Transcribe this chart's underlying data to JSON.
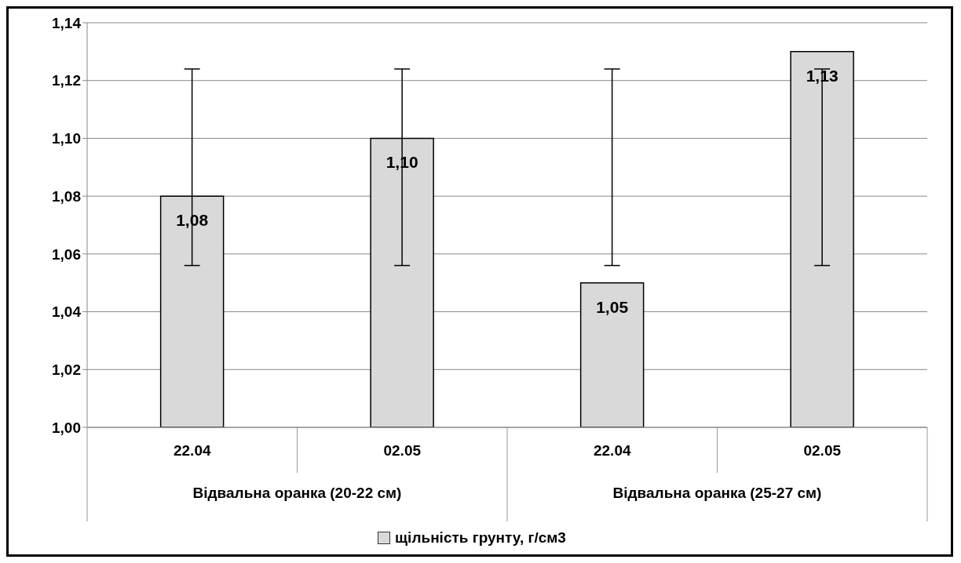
{
  "chart_data": {
    "type": "bar",
    "categories": [
      "22.04",
      "02.05",
      "22.04",
      "02.05"
    ],
    "series": [
      {
        "name": "щільність грунту, г/см3",
        "color": "#d9d9d9",
        "values": [
          1.08,
          1.1,
          1.05,
          1.13
        ],
        "errors": [
          [
            1.056,
            1.124
          ],
          [
            1.056,
            1.124
          ],
          [
            1.056,
            1.124
          ],
          [
            1.056,
            1.124
          ]
        ],
        "value_labels": [
          "1,08",
          "1,10",
          "1,05",
          "1,13"
        ]
      }
    ],
    "annotations": [
      "Відвальна оранка (20-22 см)",
      "Відвальна оранка (25-27 см)"
    ],
    "ylim": [
      1.0,
      1.14
    ],
    "yticks": [
      {
        "value": 1.0,
        "label": "1,00"
      },
      {
        "value": 1.02,
        "label": "1,02"
      },
      {
        "value": 1.04,
        "label": "1,04"
      },
      {
        "value": 1.06,
        "label": "1,06"
      },
      {
        "value": 1.08,
        "label": "1,08"
      },
      {
        "value": 1.1,
        "label": "1,10"
      },
      {
        "value": 1.12,
        "label": "1,12"
      },
      {
        "value": 1.14,
        "label": "1,14"
      }
    ],
    "grid": "y",
    "legend": "bottom"
  }
}
